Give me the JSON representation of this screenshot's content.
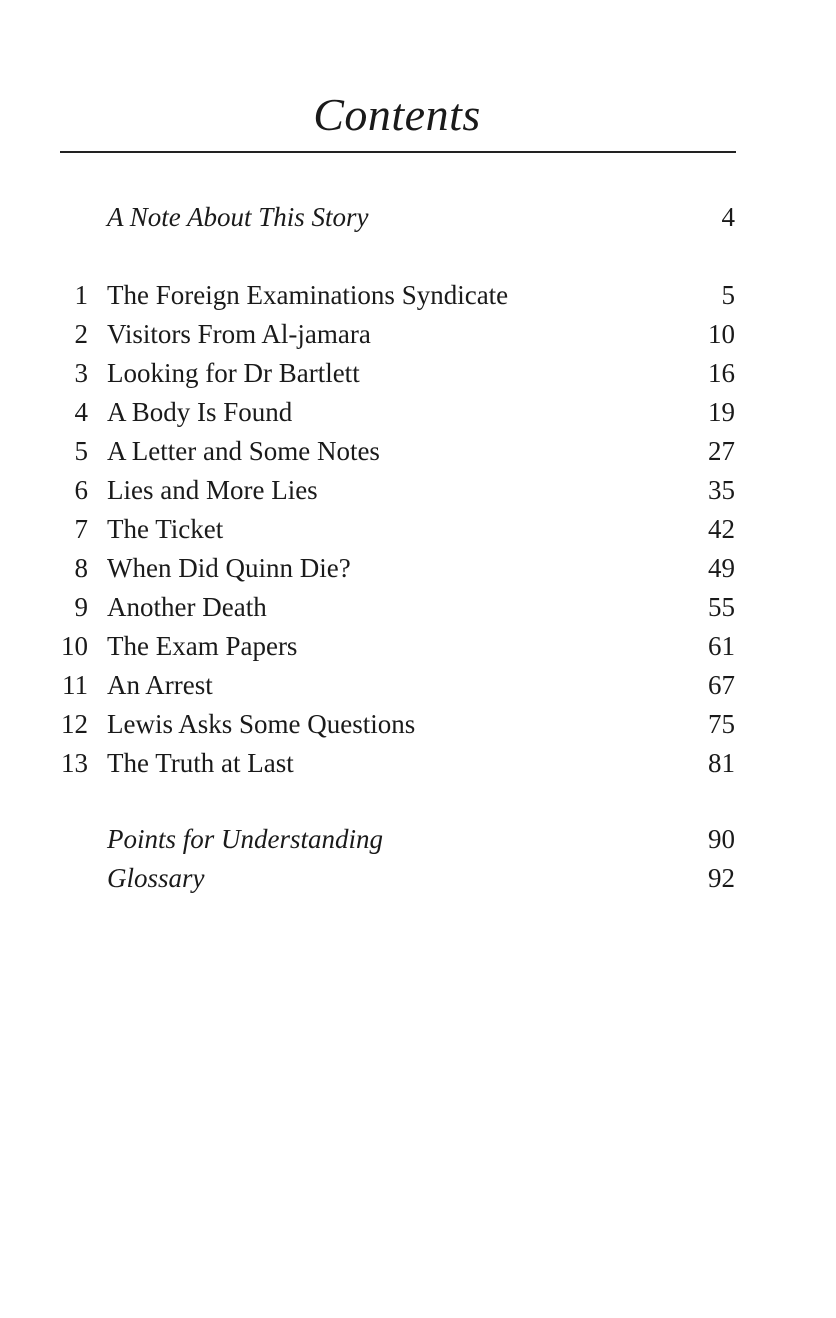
{
  "title": "Contents",
  "front_matter": [
    {
      "label": "A Note About This Story",
      "page": "4"
    }
  ],
  "chapters": [
    {
      "number": "1",
      "label": "The Foreign Examinations Syndicate",
      "page": "5"
    },
    {
      "number": "2",
      "label": "Visitors From Al-jamara",
      "page": "10"
    },
    {
      "number": "3",
      "label": "Looking for Dr Bartlett",
      "page": "16"
    },
    {
      "number": "4",
      "label": "A Body Is Found",
      "page": "19"
    },
    {
      "number": "5",
      "label": "A Letter and Some Notes",
      "page": "27"
    },
    {
      "number": "6",
      "label": "Lies and More Lies",
      "page": "35"
    },
    {
      "number": "7",
      "label": "The Ticket",
      "page": "42"
    },
    {
      "number": "8",
      "label": "When Did Quinn Die?",
      "page": "49"
    },
    {
      "number": "9",
      "label": "Another Death",
      "page": "55"
    },
    {
      "number": "10",
      "label": "The Exam Papers",
      "page": "61"
    },
    {
      "number": "11",
      "label": "An Arrest",
      "page": "67"
    },
    {
      "number": "12",
      "label": "Lewis Asks Some Questions",
      "page": "75"
    },
    {
      "number": "13",
      "label": "The Truth at Last",
      "page": "81"
    }
  ],
  "back_matter": [
    {
      "label": "Points for Understanding",
      "page": "90"
    },
    {
      "label": "Glossary",
      "page": "92"
    }
  ]
}
